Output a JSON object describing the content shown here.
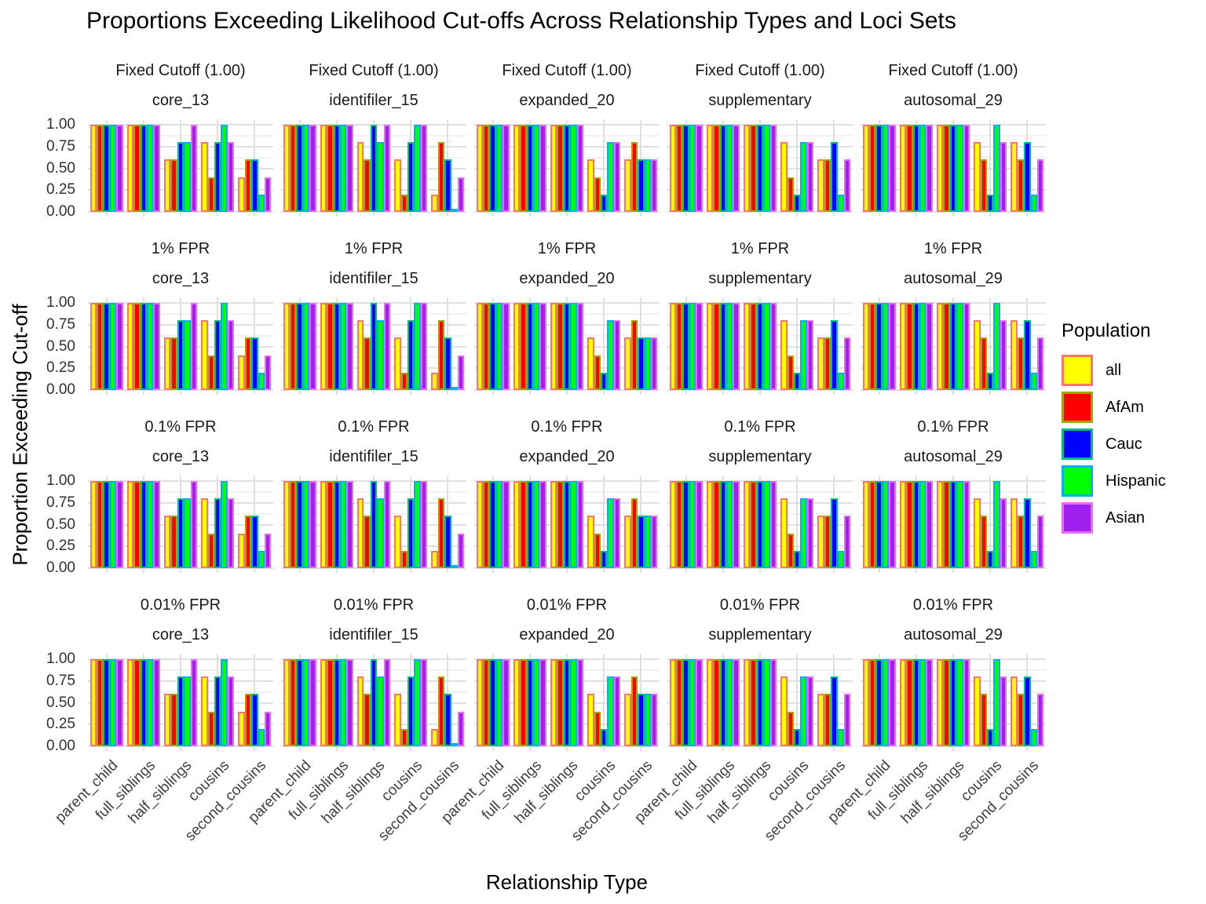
{
  "title": "Proportions Exceeding Likelihood Cut-offs Across Relationship Types and Loci Sets",
  "axes": {
    "x_title": "Relationship Type",
    "y_title": "Proportion Exceeding Cut-off",
    "y_ticks": [
      {
        "label": "1.00",
        "value": 1.0
      },
      {
        "label": "0.75",
        "value": 0.75
      },
      {
        "label": "0.50",
        "value": 0.5
      },
      {
        "label": "0.25",
        "value": 0.25
      },
      {
        "label": "0.00",
        "value": 0.0
      }
    ]
  },
  "legend": {
    "title": "Population",
    "items": [
      {
        "label": "all",
        "fill": "#FFFF00",
        "outline": "#F8766D"
      },
      {
        "label": "AfAm",
        "fill": "#FF0000",
        "outline": "#A3A500"
      },
      {
        "label": "Cauc",
        "fill": "#0000FF",
        "outline": "#00BF7D"
      },
      {
        "label": "Hispanic",
        "fill": "#00FF00",
        "outline": "#00B0F6"
      },
      {
        "label": "Asian",
        "fill": "#A020F0",
        "outline": "#E76BF3"
      }
    ]
  },
  "chart_data": {
    "type": "bar",
    "title": "Proportions Exceeding Likelihood Cut-offs Across Relationship Types and Loci Sets",
    "xlabel": "Relationship Type",
    "ylabel": "Proportion Exceeding Cut-off",
    "ylim": [
      0,
      1.05
    ],
    "y_major_ticks": [
      0,
      0.25,
      0.5,
      0.75,
      1.0
    ],
    "y_minor_ticks": [
      0.125,
      0.375,
      0.625,
      0.875
    ],
    "grid": "on",
    "legend_position": "right",
    "facet_rows": [
      "Fixed Cutoff (1.00)",
      "1% FPR",
      "0.1% FPR",
      "0.01% FPR"
    ],
    "facet_cols": [
      "core_13",
      "identifiler_15",
      "expanded_20",
      "supplementary",
      "autosomal_29"
    ],
    "categories": [
      "parent_child",
      "full_siblings",
      "half_siblings",
      "cousins",
      "second_cousins"
    ],
    "series_names": [
      "all",
      "AfAm",
      "Cauc",
      "Hispanic",
      "Asian"
    ],
    "note": "Bar values are identical across all four cutoff facet rows; values[loci][category] = [all, AfAm, Cauc, Hispanic, Asian]",
    "values": {
      "core_13": [
        [
          1.0,
          1.0,
          1.0,
          1.0,
          1.0
        ],
        [
          1.0,
          1.0,
          1.0,
          1.0,
          1.0
        ],
        [
          0.6,
          0.6,
          0.8,
          0.8,
          1.0
        ],
        [
          0.8,
          0.4,
          0.8,
          1.0,
          0.8
        ],
        [
          0.4,
          0.6,
          0.6,
          0.2,
          0.4
        ]
      ],
      "identifiler_15": [
        [
          1.0,
          1.0,
          1.0,
          1.0,
          1.0
        ],
        [
          1.0,
          1.0,
          1.0,
          1.0,
          1.0
        ],
        [
          0.8,
          0.6,
          1.0,
          0.8,
          1.0
        ],
        [
          0.6,
          0.2,
          0.8,
          1.0,
          1.0
        ],
        [
          0.2,
          0.8,
          0.6,
          0.0,
          0.4
        ]
      ],
      "expanded_20": [
        [
          1.0,
          1.0,
          1.0,
          1.0,
          1.0
        ],
        [
          1.0,
          1.0,
          1.0,
          1.0,
          1.0
        ],
        [
          1.0,
          1.0,
          1.0,
          1.0,
          1.0
        ],
        [
          0.6,
          0.4,
          0.2,
          0.8,
          0.8
        ],
        [
          0.6,
          0.8,
          0.6,
          0.6,
          0.6
        ]
      ],
      "supplementary": [
        [
          1.0,
          1.0,
          1.0,
          1.0,
          1.0
        ],
        [
          1.0,
          1.0,
          1.0,
          1.0,
          1.0
        ],
        [
          1.0,
          1.0,
          1.0,
          1.0,
          1.0
        ],
        [
          0.8,
          0.4,
          0.2,
          0.8,
          0.8
        ],
        [
          0.6,
          0.6,
          0.8,
          0.2,
          0.6
        ]
      ],
      "autosomal_29": [
        [
          1.0,
          1.0,
          1.0,
          1.0,
          1.0
        ],
        [
          1.0,
          1.0,
          1.0,
          1.0,
          1.0
        ],
        [
          1.0,
          1.0,
          1.0,
          1.0,
          1.0
        ],
        [
          0.8,
          0.6,
          0.2,
          1.0,
          0.8
        ],
        [
          0.8,
          0.6,
          0.8,
          0.2,
          0.6
        ]
      ]
    }
  }
}
